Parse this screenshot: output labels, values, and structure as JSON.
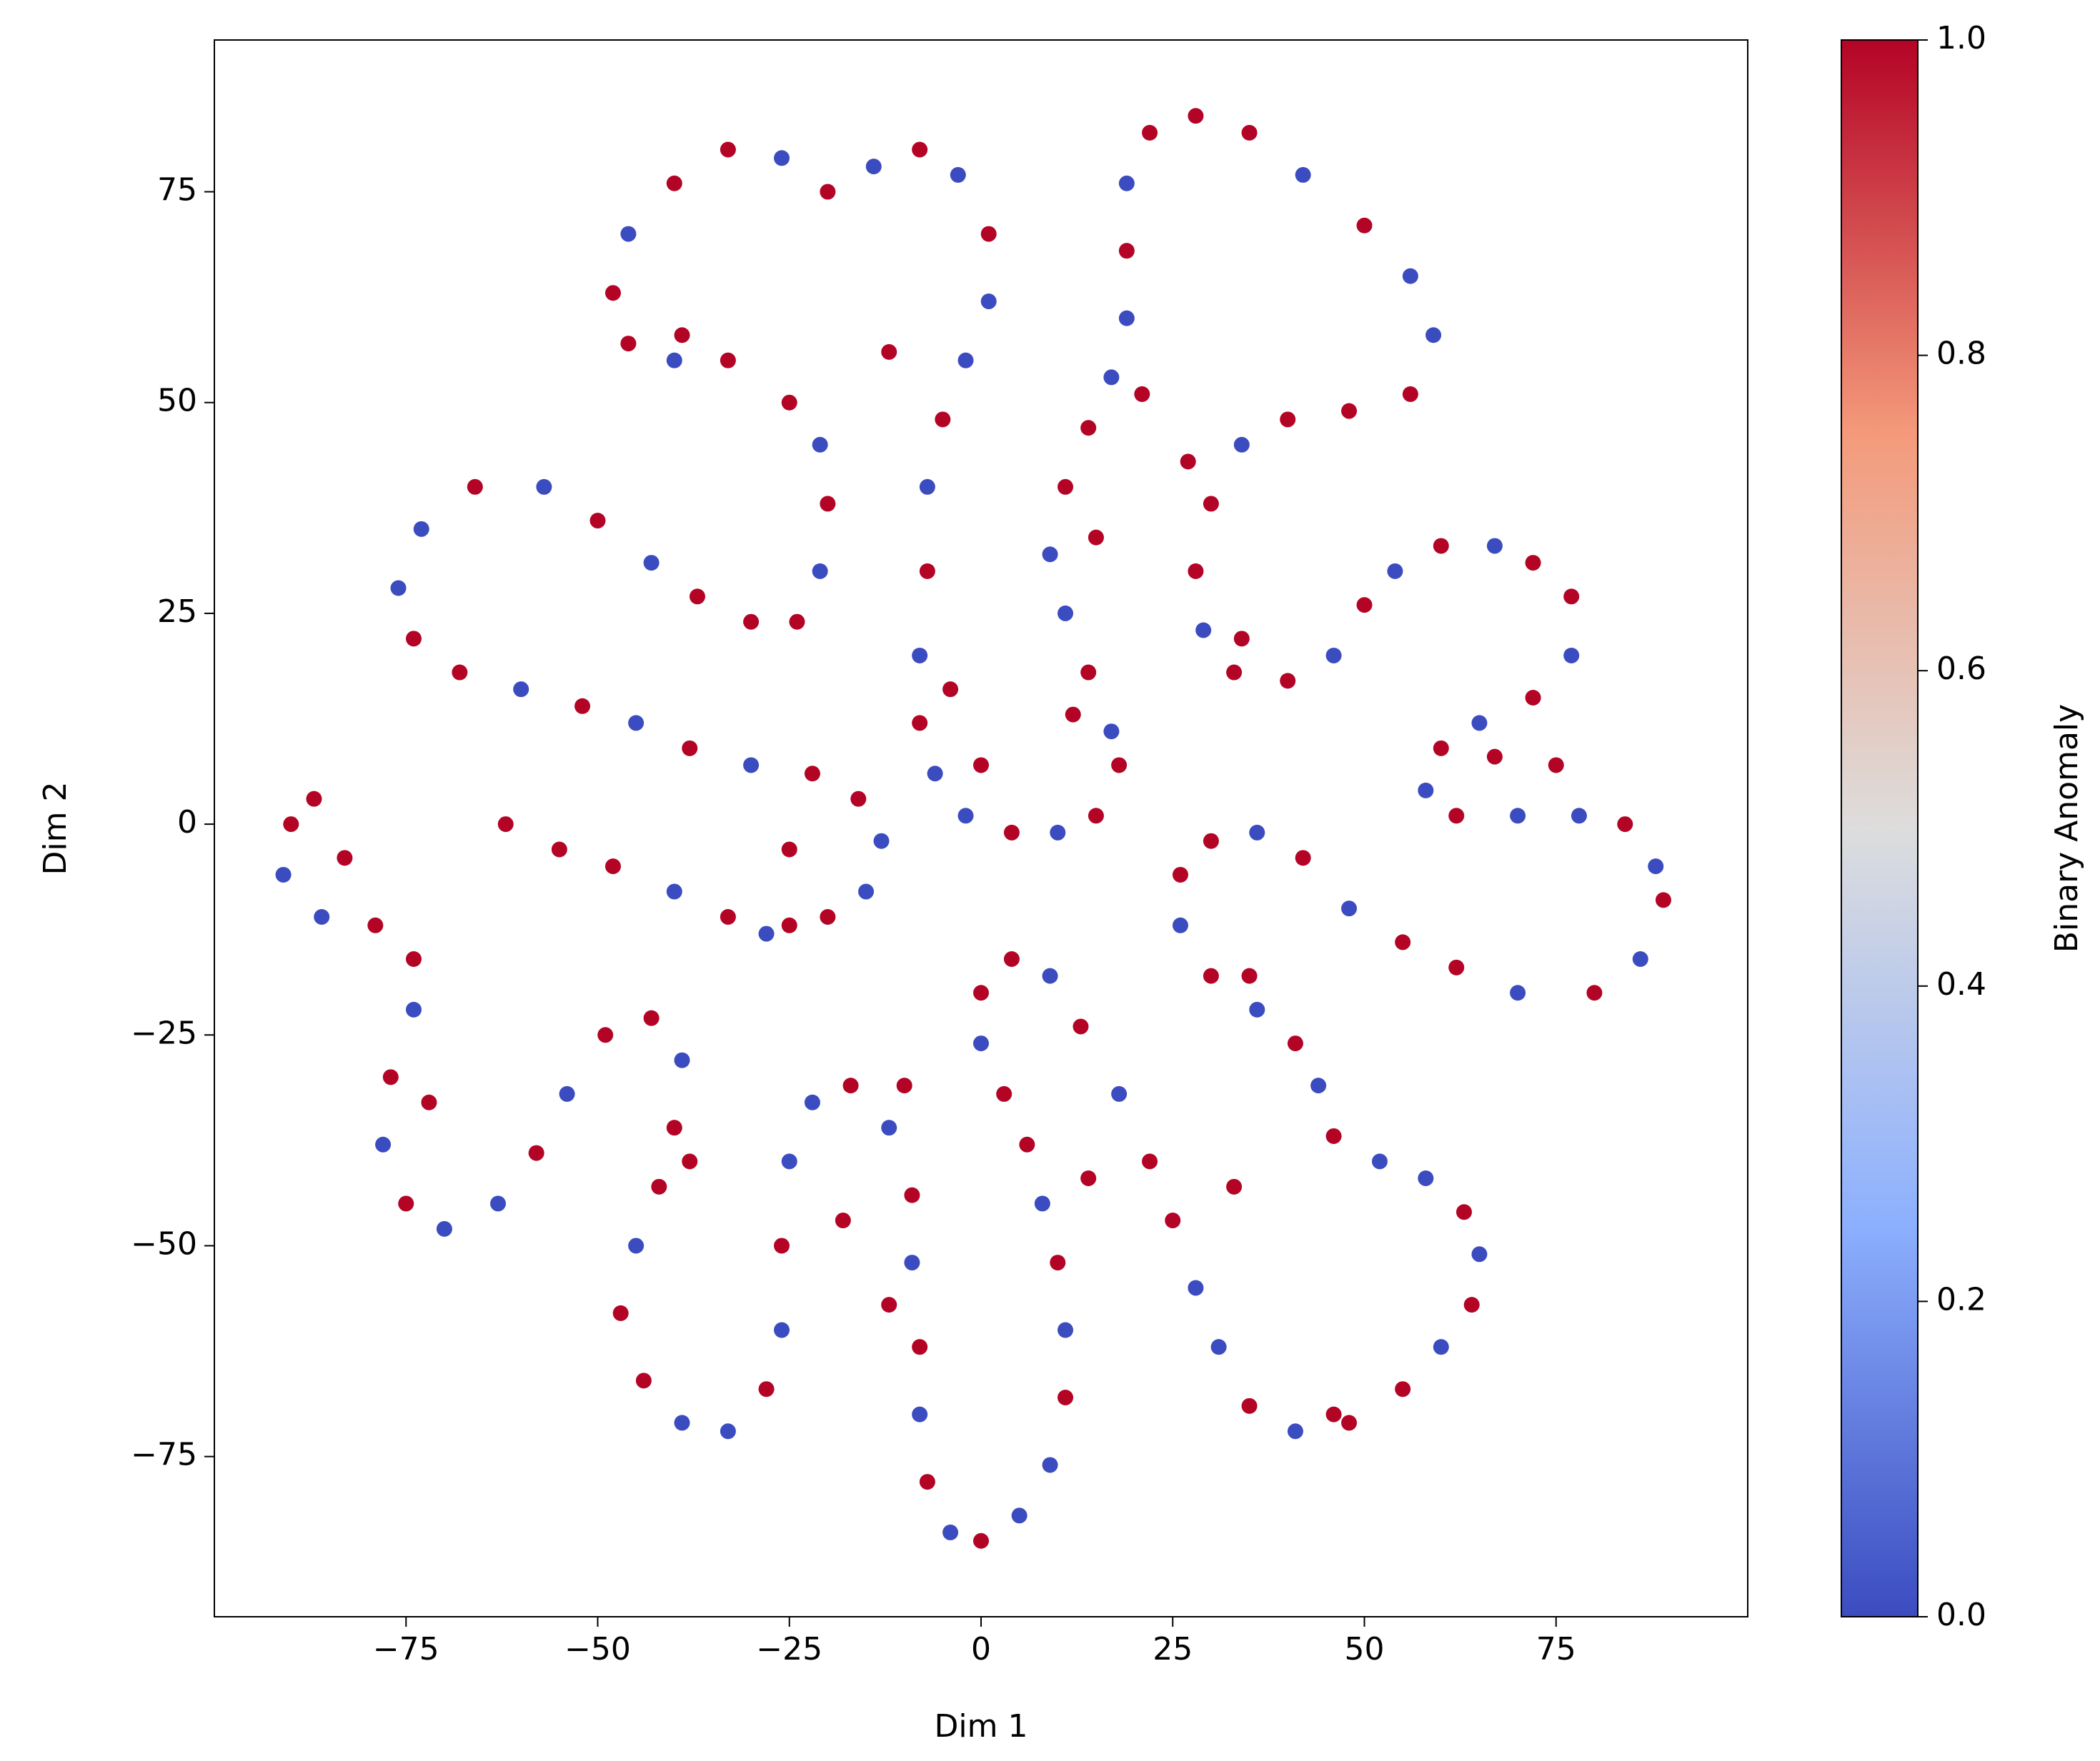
{
  "chart_data": {
    "type": "scatter",
    "xlabel": "Dim 1",
    "ylabel": "Dim 2",
    "xlim": [
      -100,
      100
    ],
    "ylim": [
      -94,
      93
    ],
    "xticks": [
      {
        "value": -75,
        "label": "−75"
      },
      {
        "value": -50,
        "label": "−50"
      },
      {
        "value": -25,
        "label": "−25"
      },
      0,
      25,
      50,
      75
    ],
    "yticks": [
      {
        "value": -75,
        "label": "−75"
      },
      {
        "value": -50,
        "label": "−50"
      },
      {
        "value": -25,
        "label": "−25"
      },
      0,
      25,
      50,
      75
    ],
    "colormap": [
      [
        0,
        "#3b4cc0"
      ],
      [
        0.25,
        "#8db0fe"
      ],
      [
        0.5,
        "#dddddd"
      ],
      [
        0.75,
        "#f49a7b"
      ],
      [
        1,
        "#b40426"
      ]
    ],
    "colorbar": {
      "label": "Binary Anomaly",
      "lim": [
        0,
        1
      ],
      "ticks": [
        {
          "value": 0,
          "label": "0.0"
        },
        0.2,
        0.4,
        0.6,
        0.8,
        {
          "value": 1,
          "label": "1.0"
        }
      ]
    },
    "points": [
      [
        17,
        11,
        0
      ],
      [
        14,
        18,
        1
      ],
      [
        11,
        25,
        0
      ],
      [
        9,
        32,
        0
      ],
      [
        11,
        40,
        1
      ],
      [
        14,
        47,
        1
      ],
      [
        17,
        53,
        0
      ],
      [
        19,
        60,
        0
      ],
      [
        19,
        68,
        1
      ],
      [
        19,
        76,
        0
      ],
      [
        22,
        82,
        1
      ],
      [
        28,
        84,
        1
      ],
      [
        35,
        82,
        1
      ],
      [
        42,
        77,
        0
      ],
      [
        50,
        71,
        1
      ],
      [
        56,
        65,
        0
      ],
      [
        59,
        58,
        0
      ],
      [
        56,
        51,
        1
      ],
      [
        48,
        49,
        1
      ],
      [
        40,
        48,
        1
      ],
      [
        34,
        45,
        0
      ],
      [
        30,
        38,
        1
      ],
      [
        28,
        30,
        1
      ],
      [
        29,
        23,
        0
      ],
      [
        33,
        18,
        1
      ],
      [
        40,
        17,
        1
      ],
      [
        46,
        20,
        0
      ],
      [
        50,
        26,
        1
      ],
      [
        54,
        30,
        0
      ],
      [
        60,
        33,
        1
      ],
      [
        67,
        33,
        0
      ],
      [
        72,
        31,
        1
      ],
      [
        77,
        27,
        1
      ],
      [
        77,
        20,
        0
      ],
      [
        72,
        15,
        1
      ],
      [
        65,
        12,
        0
      ],
      [
        60,
        9,
        1
      ],
      [
        58,
        4,
        0
      ],
      [
        62,
        1,
        1
      ],
      [
        70,
        1,
        0
      ],
      [
        78,
        1,
        0
      ],
      [
        84,
        0,
        1
      ],
      [
        88,
        -5,
        0
      ],
      [
        89,
        -9,
        1
      ],
      [
        86,
        -16,
        0
      ],
      [
        80,
        -20,
        1
      ],
      [
        70,
        -20,
        0
      ],
      [
        62,
        -17,
        1
      ],
      [
        55,
        -14,
        1
      ],
      [
        48,
        -10,
        0
      ],
      [
        42,
        -4,
        1
      ],
      [
        36,
        -1,
        0
      ],
      [
        30,
        -2,
        1
      ],
      [
        26,
        -6,
        1
      ],
      [
        26,
        -12,
        0
      ],
      [
        30,
        -18,
        1
      ],
      [
        36,
        -22,
        0
      ],
      [
        41,
        -26,
        1
      ],
      [
        44,
        -31,
        0
      ],
      [
        46,
        -37,
        1
      ],
      [
        52,
        -40,
        0
      ],
      [
        58,
        -42,
        0
      ],
      [
        63,
        -46,
        1
      ],
      [
        65,
        -51,
        0
      ],
      [
        64,
        -57,
        1
      ],
      [
        60,
        -62,
        0
      ],
      [
        55,
        -67,
        1
      ],
      [
        48,
        -71,
        1
      ],
      [
        41,
        -72,
        0
      ],
      [
        35,
        -69,
        1
      ],
      [
        31,
        -62,
        0
      ],
      [
        28,
        -55,
        0
      ],
      [
        25,
        -47,
        1
      ],
      [
        22,
        -40,
        1
      ],
      [
        18,
        -32,
        0
      ],
      [
        13,
        -24,
        1
      ],
      [
        9,
        -18,
        0
      ],
      [
        4,
        -16,
        1
      ],
      [
        0,
        -20,
        1
      ],
      [
        0,
        -26,
        0
      ],
      [
        3,
        -32,
        1
      ],
      [
        6,
        -38,
        1
      ],
      [
        8,
        -45,
        0
      ],
      [
        10,
        -52,
        1
      ],
      [
        11,
        -60,
        0
      ],
      [
        11,
        -68,
        1
      ],
      [
        9,
        -76,
        0
      ],
      [
        5,
        -82,
        0
      ],
      [
        0,
        -85,
        1
      ],
      [
        -4,
        -84,
        0
      ],
      [
        -7,
        -78,
        1
      ],
      [
        -8,
        -70,
        0
      ],
      [
        -8,
        -62,
        1
      ],
      [
        -9,
        -52,
        0
      ],
      [
        -9,
        -44,
        1
      ],
      [
        -12,
        -36,
        0
      ],
      [
        -17,
        -31,
        1
      ],
      [
        -22,
        -33,
        0
      ],
      [
        -25,
        -40,
        0
      ],
      [
        -26,
        -50,
        1
      ],
      [
        -26,
        -60,
        0
      ],
      [
        -28,
        -67,
        1
      ],
      [
        -33,
        -72,
        0
      ],
      [
        -39,
        -71,
        0
      ],
      [
        -44,
        -66,
        1
      ],
      [
        -47,
        -58,
        1
      ],
      [
        -45,
        -50,
        0
      ],
      [
        -42,
        -43,
        1
      ],
      [
        -40,
        -36,
        1
      ],
      [
        -39,
        -28,
        0
      ],
      [
        -43,
        -23,
        1
      ],
      [
        -49,
        -25,
        1
      ],
      [
        -54,
        -32,
        0
      ],
      [
        -58,
        -39,
        1
      ],
      [
        -63,
        -45,
        0
      ],
      [
        -70,
        -48,
        0
      ],
      [
        -75,
        -45,
        1
      ],
      [
        -78,
        -38,
        0
      ],
      [
        -77,
        -30,
        1
      ],
      [
        -74,
        -22,
        0
      ],
      [
        -74,
        -16,
        1
      ],
      [
        -79,
        -12,
        1
      ],
      [
        -86,
        -11,
        0
      ],
      [
        -91,
        -6,
        0
      ],
      [
        -90,
        0,
        1
      ],
      [
        -87,
        3,
        1
      ],
      [
        -25,
        -12,
        1
      ],
      [
        -20,
        -11,
        1
      ],
      [
        -15,
        -8,
        0
      ],
      [
        -13,
        -2,
        0
      ],
      [
        -16,
        3,
        1
      ],
      [
        -22,
        6,
        1
      ],
      [
        -30,
        7,
        0
      ],
      [
        -38,
        9,
        1
      ],
      [
        -45,
        12,
        0
      ],
      [
        -52,
        14,
        1
      ],
      [
        -60,
        16,
        0
      ],
      [
        -68,
        18,
        1
      ],
      [
        -74,
        22,
        1
      ],
      [
        -76,
        28,
        0
      ],
      [
        -73,
        35,
        0
      ],
      [
        -66,
        40,
        1
      ],
      [
        -57,
        40,
        0
      ],
      [
        -50,
        36,
        1
      ],
      [
        -43,
        31,
        0
      ],
      [
        -37,
        27,
        1
      ],
      [
        -30,
        24,
        1
      ],
      [
        -24,
        24,
        1
      ],
      [
        -21,
        30,
        0
      ],
      [
        -20,
        38,
        1
      ],
      [
        -21,
        45,
        0
      ],
      [
        -25,
        50,
        1
      ],
      [
        -33,
        55,
        1
      ],
      [
        -40,
        55,
        0
      ],
      [
        -46,
        57,
        1
      ],
      [
        -48,
        63,
        1
      ],
      [
        -46,
        70,
        0
      ],
      [
        -40,
        76,
        1
      ],
      [
        -33,
        80,
        1
      ],
      [
        -26,
        79,
        0
      ],
      [
        -20,
        75,
        1
      ],
      [
        -14,
        78,
        0
      ],
      [
        -8,
        80,
        1
      ],
      [
        -3,
        77,
        0
      ],
      [
        1,
        70,
        1
      ],
      [
        1,
        62,
        0
      ],
      [
        -2,
        55,
        0
      ],
      [
        -5,
        48,
        1
      ],
      [
        -7,
        40,
        0
      ],
      [
        -7,
        30,
        1
      ],
      [
        -8,
        20,
        0
      ],
      [
        -8,
        12,
        1
      ],
      [
        -6,
        6,
        0
      ],
      [
        -2,
        1,
        0
      ],
      [
        4,
        -1,
        1
      ],
      [
        10,
        -1,
        0
      ],
      [
        15,
        1,
        1
      ],
      [
        18,
        7,
        1
      ],
      [
        -62,
        0,
        1
      ],
      [
        -55,
        -3,
        1
      ],
      [
        -48,
        -5,
        1
      ],
      [
        -40,
        -8,
        0
      ],
      [
        -33,
        -11,
        1
      ],
      [
        -28,
        -13,
        0
      ],
      [
        -39,
        58,
        1
      ],
      [
        -12,
        56,
        1
      ],
      [
        21,
        51,
        1
      ],
      [
        27,
        43,
        1
      ],
      [
        15,
        34,
        1
      ],
      [
        34,
        22,
        1
      ],
      [
        12,
        13,
        1
      ],
      [
        -4,
        16,
        1
      ],
      [
        0,
        7,
        1
      ],
      [
        -25,
        -3,
        1
      ],
      [
        -10,
        -31,
        1
      ],
      [
        14,
        -42,
        1
      ],
      [
        33,
        -43,
        1
      ],
      [
        -18,
        -47,
        1
      ],
      [
        -12,
        -57,
        1
      ],
      [
        46,
        -70,
        1
      ],
      [
        -83,
        -4,
        1
      ],
      [
        -72,
        -33,
        1
      ],
      [
        -38,
        -40,
        1
      ],
      [
        75,
        7,
        1
      ],
      [
        67,
        8,
        1
      ],
      [
        35,
        -18,
        1
      ]
    ]
  }
}
